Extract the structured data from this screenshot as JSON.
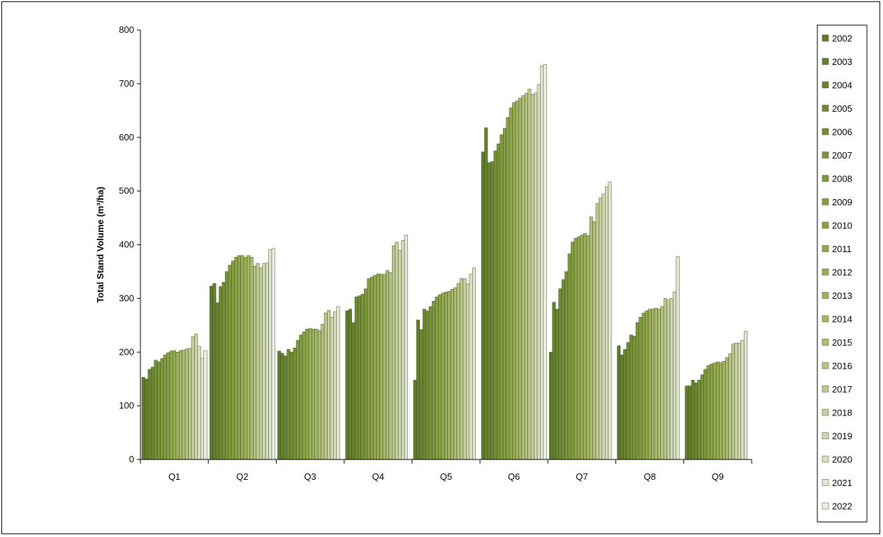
{
  "chart_data": {
    "type": "bar",
    "title": "",
    "xlabel": "",
    "ylabel": "Total Stand Volume (m³/ha)",
    "ylim": [
      0,
      800
    ],
    "yticks": [
      0,
      100,
      200,
      300,
      400,
      500,
      600,
      700,
      800
    ],
    "grid": false,
    "legend_position": "right",
    "categories": [
      "Q1",
      "Q2",
      "Q3",
      "Q4",
      "Q5",
      "Q6",
      "Q7",
      "Q8",
      "Q9"
    ],
    "series_colors": [
      "#5f7a2c",
      "#647f2e",
      "#698531",
      "#6e8a34",
      "#748f37",
      "#79943a",
      "#7f993e",
      "#859e43",
      "#8ba348",
      "#91a84e",
      "#98ad56",
      "#9fb25f",
      "#a6b76a",
      "#aebd76",
      "#b6c384",
      "#bfca93",
      "#c8d1a3",
      "#d1d9b4",
      "#dae0c5",
      "#e3e8d6",
      "#ecf0e6"
    ],
    "series": [
      {
        "name": "2002",
        "values": [
          153,
          323,
          202,
          277,
          148,
          573,
          200,
          212,
          137
        ]
      },
      {
        "name": "2003",
        "values": [
          150,
          328,
          198,
          280,
          260,
          618,
          293,
          195,
          137
        ]
      },
      {
        "name": "2004",
        "values": [
          168,
          292,
          193,
          255,
          242,
          553,
          280,
          205,
          148
        ]
      },
      {
        "name": "2005",
        "values": [
          172,
          322,
          205,
          303,
          280,
          555,
          318,
          218,
          143
        ]
      },
      {
        "name": "2006",
        "values": [
          185,
          330,
          200,
          305,
          277,
          575,
          335,
          232,
          148
        ]
      },
      {
        "name": "2007",
        "values": [
          182,
          350,
          208,
          308,
          285,
          588,
          350,
          230,
          158
        ]
      },
      {
        "name": "2008",
        "values": [
          188,
          362,
          222,
          318,
          295,
          605,
          383,
          255,
          168
        ]
      },
      {
        "name": "2009",
        "values": [
          195,
          370,
          232,
          337,
          303,
          617,
          405,
          265,
          175
        ]
      },
      {
        "name": "2010",
        "values": [
          199,
          377,
          238,
          340,
          307,
          637,
          412,
          273,
          178
        ]
      },
      {
        "name": "2011",
        "values": [
          202,
          380,
          243,
          343,
          310,
          655,
          415,
          277,
          180
        ]
      },
      {
        "name": "2012",
        "values": [
          203,
          380,
          244,
          346,
          312,
          665,
          418,
          280,
          182
        ]
      },
      {
        "name": "2013",
        "values": [
          200,
          377,
          243,
          345,
          313,
          668,
          421,
          280,
          180
        ]
      },
      {
        "name": "2014",
        "values": [
          203,
          380,
          243,
          345,
          317,
          673,
          417,
          282,
          183
        ]
      },
      {
        "name": "2015",
        "values": [
          204,
          377,
          240,
          352,
          320,
          678,
          452,
          280,
          190
        ]
      },
      {
        "name": "2016",
        "values": [
          206,
          360,
          252,
          348,
          328,
          682,
          443,
          285,
          197
        ]
      },
      {
        "name": "2017",
        "values": [
          207,
          365,
          273,
          398,
          337,
          690,
          477,
          300,
          215
        ]
      },
      {
        "name": "2018",
        "values": [
          229,
          357,
          278,
          405,
          337,
          680,
          487,
          297,
          217
        ]
      },
      {
        "name": "2019",
        "values": [
          234,
          365,
          265,
          390,
          327,
          683,
          495,
          300,
          217
        ]
      },
      {
        "name": "2020",
        "values": [
          211,
          366,
          275,
          408,
          345,
          698,
          508,
          312,
          222
        ]
      },
      {
        "name": "2021",
        "values": [
          188,
          391,
          285,
          418,
          357,
          733,
          517,
          378,
          239
        ]
      },
      {
        "name": "2022",
        "values": [
          203,
          393,
          0,
          0,
          0,
          736,
          0,
          0,
          0
        ]
      }
    ]
  }
}
